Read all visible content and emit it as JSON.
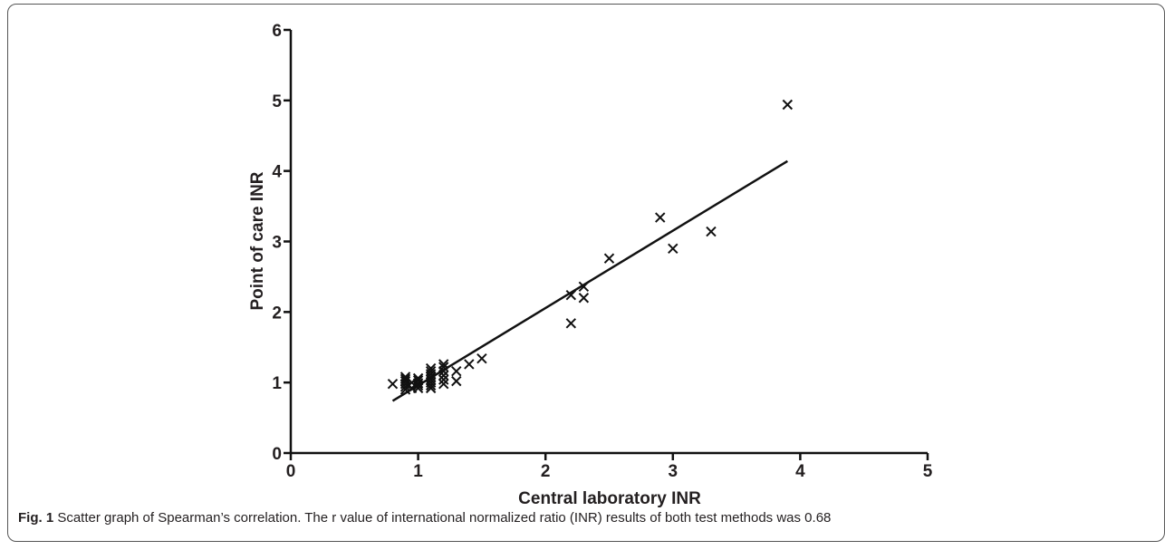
{
  "caption": {
    "label": "Fig. 1",
    "text": " Scatter graph of Spearman’s correlation. The r value of international normalized ratio (INR) results of both test methods was 0.68"
  },
  "chart_data": {
    "type": "scatter",
    "xlabel": "Central laboratory INR",
    "ylabel": "Point of care INR",
    "xlim": [
      0,
      5
    ],
    "ylim": [
      0,
      6
    ],
    "x_ticks": [
      "0",
      "1",
      "2",
      "3",
      "4",
      "5"
    ],
    "y_ticks": [
      "0",
      "1",
      "2",
      "3",
      "4",
      "5",
      "6"
    ],
    "grid": false,
    "marker": "x",
    "color": "#111111",
    "points": [
      [
        0.8,
        0.98
      ],
      [
        0.9,
        0.9
      ],
      [
        0.9,
        0.94
      ],
      [
        0.9,
        0.98
      ],
      [
        0.9,
        1.02
      ],
      [
        0.9,
        1.05
      ],
      [
        0.9,
        1.08
      ],
      [
        0.95,
        0.92
      ],
      [
        0.95,
        1.0
      ],
      [
        1.0,
        0.92
      ],
      [
        1.0,
        0.96
      ],
      [
        1.0,
        0.99
      ],
      [
        1.0,
        1.03
      ],
      [
        1.0,
        1.06
      ],
      [
        1.1,
        0.92
      ],
      [
        1.1,
        0.96
      ],
      [
        1.1,
        1.0
      ],
      [
        1.1,
        1.04
      ],
      [
        1.1,
        1.08
      ],
      [
        1.1,
        1.12
      ],
      [
        1.1,
        1.16
      ],
      [
        1.1,
        1.2
      ],
      [
        1.2,
        0.98
      ],
      [
        1.2,
        1.04
      ],
      [
        1.2,
        1.1
      ],
      [
        1.2,
        1.16
      ],
      [
        1.2,
        1.22
      ],
      [
        1.2,
        1.26
      ],
      [
        1.3,
        1.02
      ],
      [
        1.3,
        1.16
      ],
      [
        1.4,
        1.26
      ],
      [
        1.5,
        1.34
      ],
      [
        2.2,
        1.84
      ],
      [
        2.2,
        2.24
      ],
      [
        2.3,
        2.2
      ],
      [
        2.3,
        2.36
      ],
      [
        2.5,
        2.76
      ],
      [
        2.9,
        3.34
      ],
      [
        3.0,
        2.9
      ],
      [
        3.3,
        3.14
      ],
      [
        3.9,
        4.94
      ]
    ],
    "fit_line": {
      "x": [
        0.8,
        3.9
      ],
      "y": [
        0.74,
        4.14
      ]
    }
  }
}
